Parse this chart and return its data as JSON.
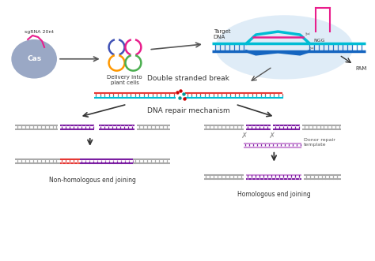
{
  "background_color": "#ffffff",
  "cas_label": "Cas",
  "sgrna_label": "sgRNA 20nt",
  "delivery_label": "Delivery into\nplant cells",
  "target_dna_label": "Target\nDNA",
  "ngg_label": "NGG",
  "pam_label": "PAM",
  "dsb_label": "Double stranded break",
  "repair_label": "DNA repair mechanism",
  "nhej_label": "Non-homologous end joining",
  "hej_label": "Homologous end joining",
  "donor_label": "Donor repair\ntemplate",
  "colors": {
    "cas_color": "#8899bb",
    "cyan": "#00bcd4",
    "blue_dark": "#1565c0",
    "red": "#e53935",
    "purple": "#7b1fa2",
    "purple_light": "#ce93d8",
    "gray": "#aaaaaa",
    "pink": "#e91e8c",
    "green": "#4caf50",
    "orange": "#ff9800",
    "light_blue_bg": "#cfe2f3",
    "arrow": "#555555",
    "text": "#333333"
  }
}
